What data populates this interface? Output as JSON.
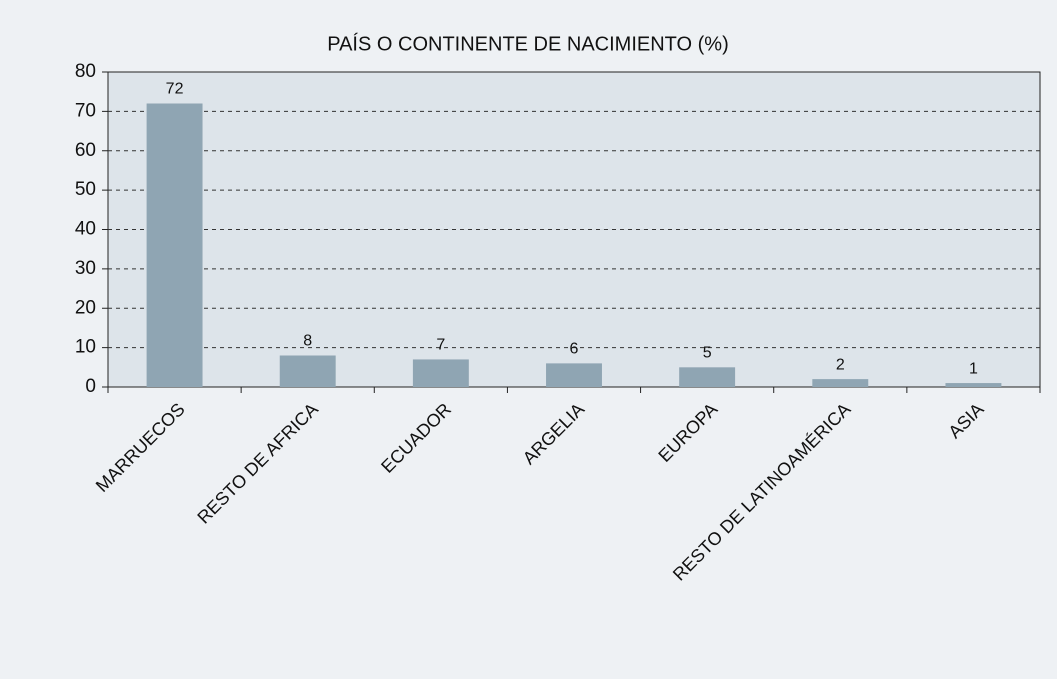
{
  "chart_data": {
    "type": "bar",
    "title": "PAÍS O CONTINENTE DE NACIMIENTO (%)",
    "categories": [
      "MARRUECOS",
      "RESTO DE AFRICA",
      "ECUADOR",
      "ARGELIA",
      "EUROPA",
      "RESTO DE LATINOAMÉRICA",
      "ASIA"
    ],
    "values": [
      72,
      8,
      7,
      6,
      5,
      2,
      1
    ],
    "color": "#8fa5b3",
    "ylim": [
      0,
      80
    ],
    "yticks": [
      0,
      10,
      20,
      30,
      40,
      50,
      60,
      70,
      80
    ],
    "grid": true
  }
}
